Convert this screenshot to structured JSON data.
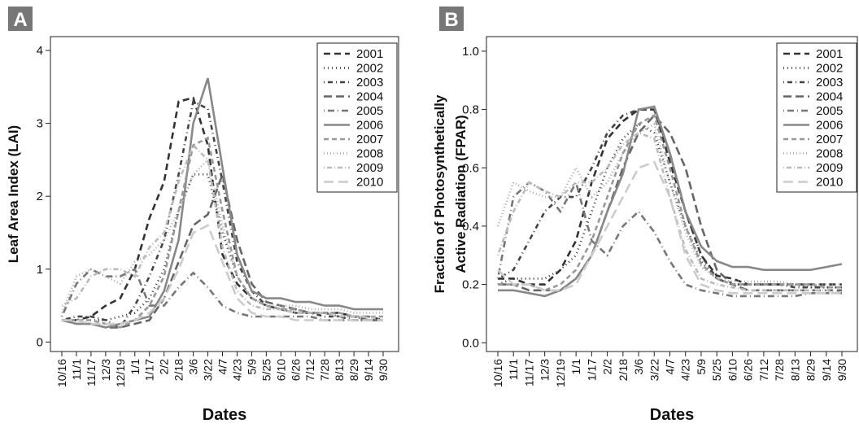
{
  "chart_data": [
    {
      "type": "line",
      "panel": "A",
      "ylabel": [
        "Leaf Area Index (LAI)"
      ],
      "xlabel": "Dates",
      "categories": [
        "10/16",
        "11/1",
        "11/17",
        "12/3",
        "12/19",
        "1/1",
        "1/17",
        "2/2",
        "2/18",
        "3/6",
        "3/22",
        "4/7",
        "4/23",
        "5/9",
        "5/25",
        "6/10",
        "6/26",
        "7/12",
        "7/28",
        "8/13",
        "8/29",
        "9/14",
        "9/30"
      ],
      "ylim": [
        -0.13,
        4.19
      ],
      "yticks": [
        0,
        1,
        2,
        3,
        4
      ],
      "legend": "top-right",
      "series": [
        {
          "name": "2001",
          "color": "#333333",
          "dash": "8,5",
          "values": [
            0.3,
            0.3,
            0.35,
            0.5,
            0.6,
            1.0,
            1.7,
            2.2,
            3.3,
            3.35,
            2.7,
            1.2,
            0.8,
            0.6,
            0.5,
            0.45,
            0.45,
            0.4,
            0.4,
            0.4,
            0.35,
            0.35,
            0.3
          ]
        },
        {
          "name": "2002",
          "color": "#333333",
          "dash": "1,4",
          "values": [
            0.3,
            0.3,
            0.3,
            0.3,
            0.35,
            0.4,
            0.6,
            1.0,
            1.8,
            2.3,
            2.3,
            1.5,
            0.9,
            0.6,
            0.5,
            0.45,
            0.4,
            0.4,
            0.4,
            0.35,
            0.35,
            0.3,
            0.3
          ]
        },
        {
          "name": "2003",
          "color": "#444444",
          "dash": "1,4,6,4",
          "values": [
            0.3,
            0.35,
            0.35,
            0.3,
            0.2,
            0.5,
            0.9,
            1.4,
            2.3,
            3.3,
            3.2,
            2.2,
            1.1,
            0.7,
            0.5,
            0.45,
            0.4,
            0.4,
            0.35,
            0.35,
            0.3,
            0.3,
            0.3
          ]
        },
        {
          "name": "2004",
          "color": "#666666",
          "dash": "10,5",
          "values": [
            0.3,
            0.25,
            0.25,
            0.2,
            0.2,
            0.25,
            0.3,
            0.6,
            1.1,
            1.6,
            1.75,
            2.3,
            1.4,
            0.8,
            0.55,
            0.5,
            0.45,
            0.4,
            0.4,
            0.35,
            0.35,
            0.3,
            0.3
          ]
        },
        {
          "name": "2005",
          "color": "#777777",
          "dash": "1,4,8,4",
          "values": [
            0.35,
            0.8,
            1.0,
            0.9,
            0.9,
            1.0,
            0.5,
            0.5,
            0.75,
            0.95,
            0.75,
            0.5,
            0.4,
            0.35,
            0.35,
            0.35,
            0.35,
            0.35,
            0.3,
            0.3,
            0.3,
            0.3,
            0.3
          ]
        },
        {
          "name": "2006",
          "color": "#888888",
          "values": [
            0.3,
            0.25,
            0.25,
            0.2,
            0.25,
            0.3,
            0.35,
            0.7,
            1.4,
            3.0,
            3.62,
            2.4,
            1.2,
            0.7,
            0.6,
            0.6,
            0.55,
            0.55,
            0.5,
            0.5,
            0.45,
            0.45,
            0.45
          ]
        },
        {
          "name": "2007",
          "color": "#999999",
          "dash": "6,4",
          "values": [
            0.3,
            0.3,
            0.3,
            0.25,
            0.2,
            0.3,
            0.5,
            0.9,
            1.8,
            2.7,
            2.8,
            1.8,
            0.9,
            0.6,
            0.5,
            0.45,
            0.45,
            0.4,
            0.4,
            0.4,
            0.35,
            0.35,
            0.35
          ]
        },
        {
          "name": "2008",
          "color": "#aaaaaa",
          "dash": "1,3",
          "values": [
            0.4,
            0.9,
            1.0,
            0.9,
            0.8,
            1.1,
            1.2,
            1.4,
            1.8,
            2.3,
            2.5,
            1.6,
            0.9,
            0.6,
            0.5,
            0.5,
            0.5,
            0.45,
            0.45,
            0.45,
            0.4,
            0.4,
            0.4
          ]
        },
        {
          "name": "2009",
          "color": "#bbbbbb",
          "dash": "1,3,6,3",
          "values": [
            0.5,
            0.6,
            0.9,
            1.0,
            1.0,
            0.9,
            1.3,
            1.5,
            2.2,
            2.7,
            2.5,
            1.3,
            0.7,
            0.5,
            0.45,
            0.45,
            0.4,
            0.4,
            0.4,
            0.35,
            0.35,
            0.35,
            0.3
          ]
        },
        {
          "name": "2010",
          "color": "#cccccc",
          "dash": "12,6",
          "values": [
            0.3,
            0.3,
            0.25,
            0.25,
            0.25,
            0.3,
            0.4,
            0.6,
            1.0,
            1.5,
            1.6,
            1.1,
            0.6,
            0.4,
            0.35,
            0.35,
            0.3,
            0.3,
            0.3,
            0.3,
            0.3,
            0.3,
            0.3
          ]
        }
      ]
    },
    {
      "type": "line",
      "panel": "B",
      "ylabel": [
        "Fraction of Photosynthetically",
        "Active Radiation (FPAR)"
      ],
      "xlabel": "Dates",
      "categories": [
        "10/16",
        "11/1",
        "11/17",
        "12/3",
        "12/19",
        "1/1",
        "1/17",
        "2/2",
        "2/18",
        "3/6",
        "3/22",
        "4/7",
        "4/23",
        "5/9",
        "5/25",
        "6/10",
        "6/26",
        "7/12",
        "7/28",
        "8/13",
        "8/29",
        "9/14",
        "9/30"
      ],
      "ylim": [
        -0.03,
        1.05
      ],
      "yticks": [
        {
          "value": 0,
          "label": "0.0"
        },
        0.2,
        0.4,
        0.6,
        0.8,
        {
          "value": 1,
          "label": "1.0"
        }
      ],
      "legend": "top-right",
      "series": [
        {
          "name": "2001",
          "color": "#333333",
          "dash": "8,5",
          "values": [
            0.22,
            0.22,
            0.2,
            0.2,
            0.25,
            0.35,
            0.55,
            0.7,
            0.76,
            0.8,
            0.8,
            0.62,
            0.45,
            0.3,
            0.23,
            0.22,
            0.2,
            0.2,
            0.2,
            0.2,
            0.2,
            0.2,
            0.2
          ]
        },
        {
          "name": "2002",
          "color": "#333333",
          "dash": "1,4",
          "values": [
            0.2,
            0.22,
            0.22,
            0.22,
            0.25,
            0.3,
            0.45,
            0.6,
            0.7,
            0.75,
            0.72,
            0.55,
            0.4,
            0.28,
            0.22,
            0.2,
            0.2,
            0.2,
            0.2,
            0.2,
            0.19,
            0.19,
            0.19
          ]
        },
        {
          "name": "2003",
          "color": "#444444",
          "dash": "1,4,6,4",
          "values": [
            0.22,
            0.25,
            0.35,
            0.45,
            0.5,
            0.5,
            0.6,
            0.72,
            0.78,
            0.8,
            0.8,
            0.65,
            0.45,
            0.3,
            0.22,
            0.2,
            0.2,
            0.2,
            0.2,
            0.19,
            0.19,
            0.19,
            0.19
          ]
        },
        {
          "name": "2004",
          "color": "#666666",
          "dash": "10,5",
          "values": [
            0.2,
            0.2,
            0.18,
            0.18,
            0.18,
            0.22,
            0.3,
            0.45,
            0.6,
            0.72,
            0.78,
            0.72,
            0.6,
            0.4,
            0.25,
            0.2,
            0.18,
            0.18,
            0.18,
            0.18,
            0.18,
            0.18,
            0.18
          ]
        },
        {
          "name": "2005",
          "color": "#777777",
          "dash": "1,4,8,4",
          "values": [
            0.22,
            0.5,
            0.55,
            0.52,
            0.45,
            0.55,
            0.35,
            0.3,
            0.4,
            0.45,
            0.38,
            0.28,
            0.2,
            0.18,
            0.17,
            0.16,
            0.16,
            0.16,
            0.16,
            0.16,
            0.17,
            0.17,
            0.17
          ]
        },
        {
          "name": "2006",
          "color": "#888888",
          "values": [
            0.18,
            0.18,
            0.17,
            0.16,
            0.18,
            0.22,
            0.3,
            0.45,
            0.58,
            0.8,
            0.81,
            0.65,
            0.45,
            0.33,
            0.28,
            0.26,
            0.26,
            0.25,
            0.25,
            0.25,
            0.25,
            0.26,
            0.27
          ]
        },
        {
          "name": "2007",
          "color": "#999999",
          "dash": "6,4",
          "values": [
            0.2,
            0.2,
            0.2,
            0.18,
            0.2,
            0.25,
            0.35,
            0.5,
            0.65,
            0.75,
            0.78,
            0.6,
            0.4,
            0.27,
            0.22,
            0.2,
            0.2,
            0.2,
            0.2,
            0.2,
            0.2,
            0.19,
            0.19
          ]
        },
        {
          "name": "2008",
          "color": "#aaaaaa",
          "dash": "1,3",
          "values": [
            0.4,
            0.55,
            0.52,
            0.5,
            0.5,
            0.6,
            0.5,
            0.55,
            0.65,
            0.72,
            0.75,
            0.55,
            0.38,
            0.26,
            0.22,
            0.21,
            0.21,
            0.21,
            0.21,
            0.2,
            0.2,
            0.2,
            0.2
          ]
        },
        {
          "name": "2009",
          "color": "#bbbbbb",
          "dash": "1,3,6,3",
          "values": [
            0.3,
            0.45,
            0.55,
            0.52,
            0.5,
            0.55,
            0.55,
            0.6,
            0.68,
            0.72,
            0.7,
            0.5,
            0.32,
            0.22,
            0.2,
            0.19,
            0.18,
            0.18,
            0.18,
            0.18,
            0.18,
            0.18,
            0.17
          ]
        },
        {
          "name": "2010",
          "color": "#cccccc",
          "dash": "12,6",
          "values": [
            0.25,
            0.2,
            0.2,
            0.18,
            0.18,
            0.2,
            0.3,
            0.4,
            0.5,
            0.6,
            0.62,
            0.5,
            0.3,
            0.2,
            0.18,
            0.17,
            0.17,
            0.17,
            0.17,
            0.17,
            0.17,
            0.17,
            0.17
          ]
        }
      ]
    }
  ]
}
